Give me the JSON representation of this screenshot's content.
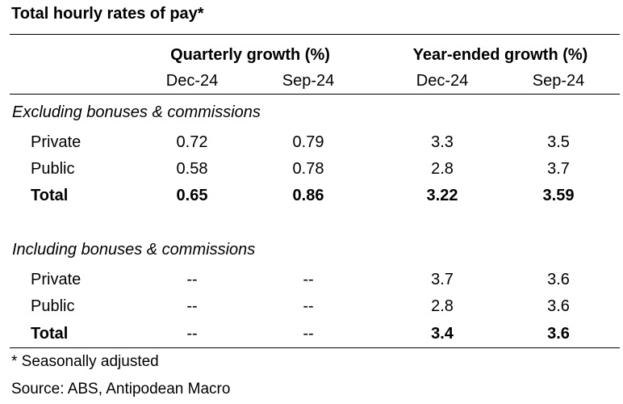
{
  "title": "Total hourly rates of pay*",
  "groups": [
    "Quarterly growth (%)",
    "Year-ended growth (%)"
  ],
  "columns": [
    "Dec-24",
    "Sep-24",
    "Dec-24",
    "Sep-24"
  ],
  "sections": [
    {
      "heading": "Excluding bonuses & commissions",
      "rows": [
        {
          "label": "Private",
          "values": [
            "0.72",
            "0.79",
            "3.3",
            "3.5"
          ]
        },
        {
          "label": "Public",
          "values": [
            "0.58",
            "0.78",
            "2.8",
            "3.7"
          ]
        },
        {
          "label": "Total",
          "values": [
            "0.65",
            "0.86",
            "3.22",
            "3.59"
          ]
        }
      ]
    },
    {
      "heading": "Including bonuses & commissions",
      "rows": [
        {
          "label": "Private",
          "values": [
            "--",
            "--",
            "3.7",
            "3.6"
          ]
        },
        {
          "label": "Public",
          "values": [
            "--",
            "--",
            "2.8",
            "3.6"
          ]
        },
        {
          "label": "Total",
          "values": [
            "--",
            "--",
            "3.4",
            "3.6"
          ]
        }
      ]
    }
  ],
  "footnotes": {
    "note": "* Seasonally adjusted",
    "source": "Source: ABS, Antipodean Macro"
  }
}
